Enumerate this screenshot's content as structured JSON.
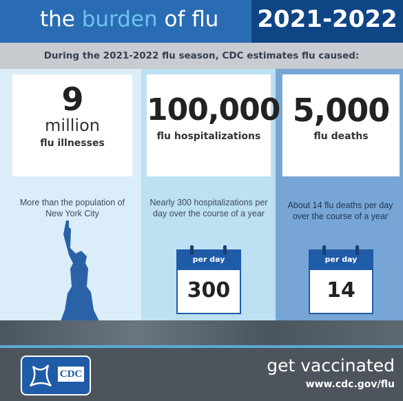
{
  "header": {
    "title": [
      "the",
      "burden",
      "of flu"
    ],
    "season": "2021-2022"
  },
  "subtitle": "During the 2021-2022 flu season, CDC estimates flu caused:",
  "columns": [
    {
      "value": "9",
      "unit": "million",
      "label": "flu illnesses",
      "description": "More than the population of New York City"
    },
    {
      "value": "100,000",
      "label": "flu hospitalizations",
      "description": "Nearly 300 hospitalizations per day over the course of a year",
      "calendar": {
        "header": "per day",
        "value": "300"
      }
    },
    {
      "value": "5,000",
      "label": "flu deaths",
      "description": "About 14 flu deaths per day over the course of a year",
      "calendar": {
        "header": "per day",
        "value": "14"
      }
    }
  ],
  "footer": {
    "logo": "CDC",
    "cta": "get vaccinated",
    "url": "www.cdc.gov/flu"
  }
}
